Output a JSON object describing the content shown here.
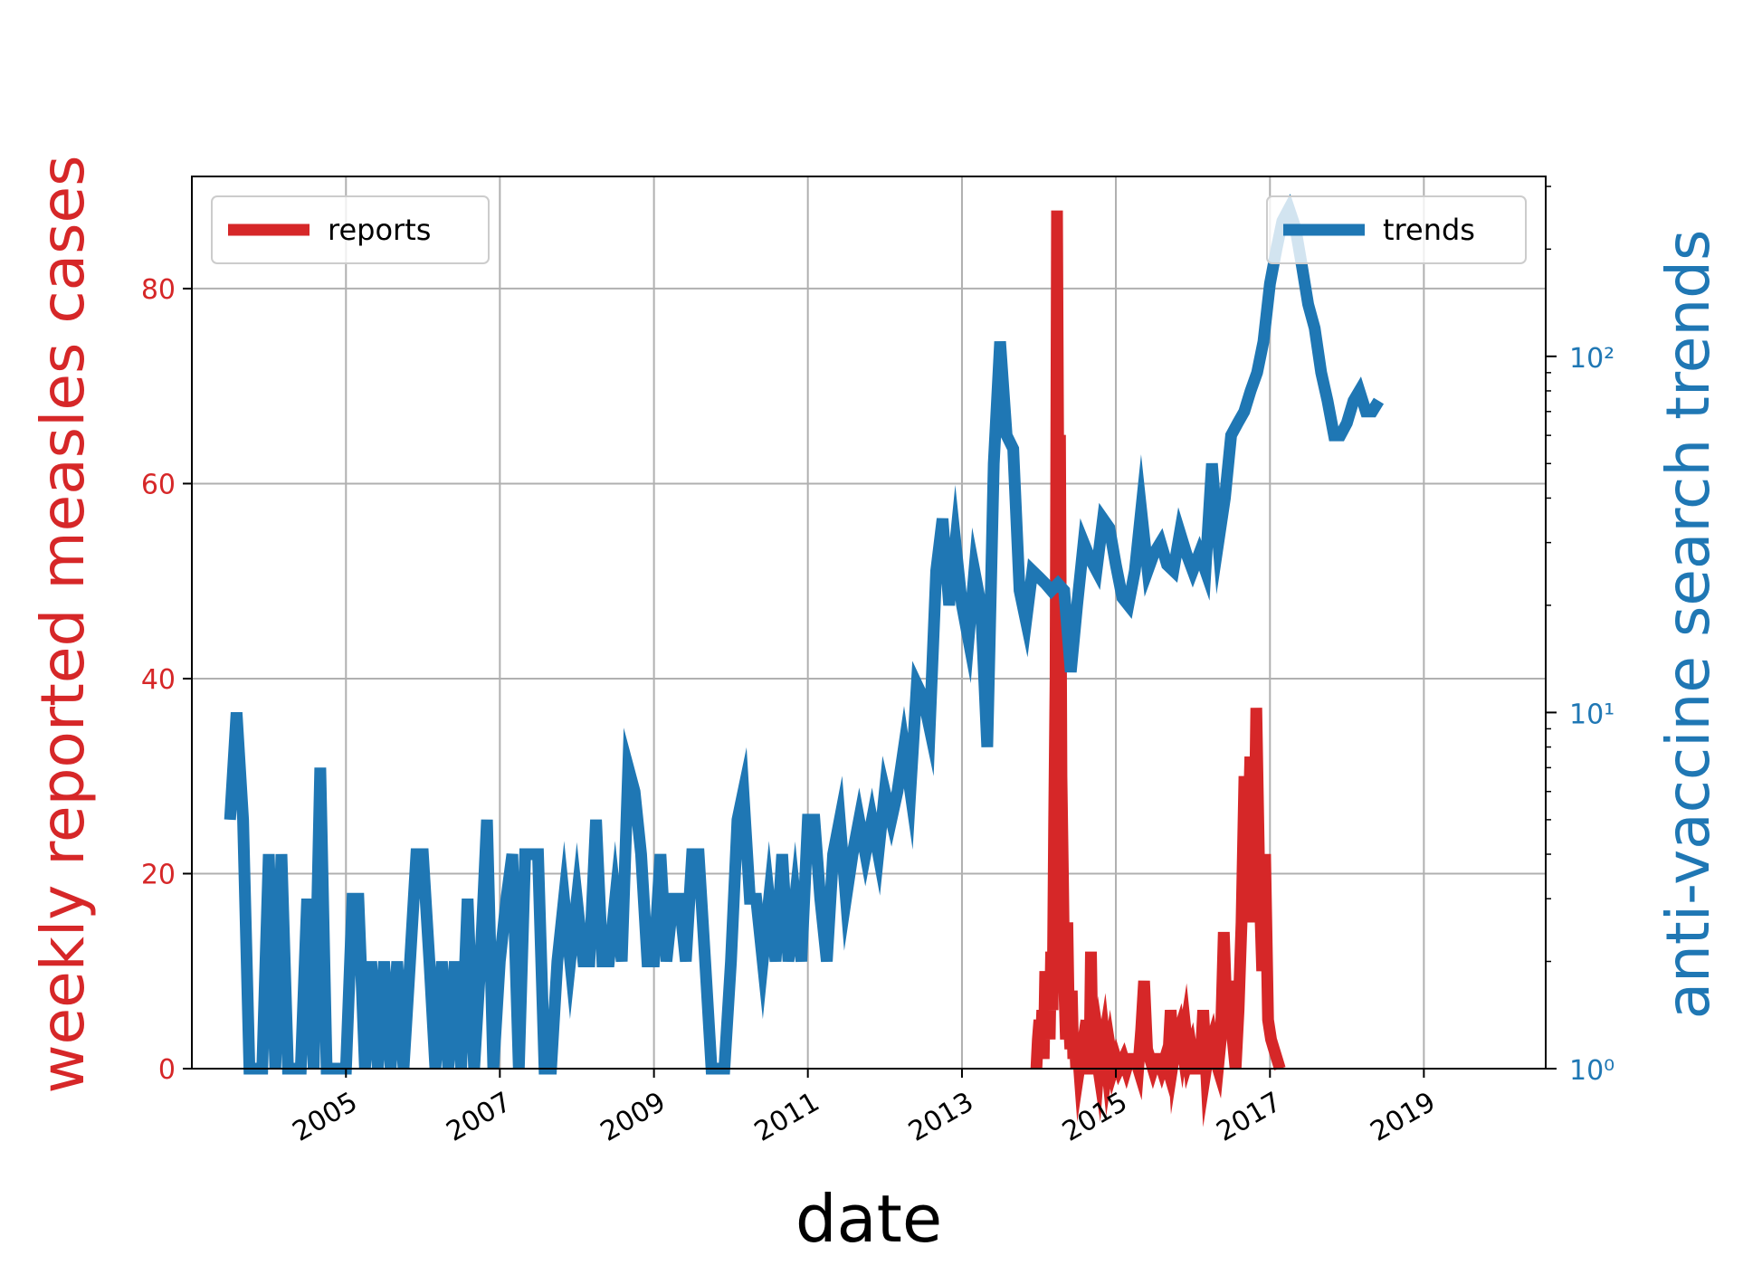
{
  "chart_data": {
    "type": "line",
    "xlabel": "date",
    "ylabel_left": "weekly reported measles cases",
    "ylabel_right": "anti-vaccine search trends",
    "grid": true,
    "x_tick_labels": [
      "2005",
      "2007",
      "2009",
      "2011",
      "2013",
      "2015",
      "2017",
      "2019"
    ],
    "y_left": {
      "ticks": [
        0,
        20,
        40,
        60,
        80
      ],
      "lim": [
        0,
        91.5
      ],
      "color": "#d62728"
    },
    "y_right": {
      "scale": "log",
      "ticks": [
        1,
        10,
        100
      ],
      "tick_labels": [
        "10⁰",
        "10¹",
        "10²"
      ],
      "lim": [
        1,
        320
      ],
      "color": "#1f77b4"
    },
    "xlim": [
      "2003-01-01",
      "2020-08-01"
    ],
    "legends": [
      {
        "label": "reports",
        "color": "#d62728",
        "position": "upper-left"
      },
      {
        "label": "trends",
        "color": "#1f77b4",
        "position": "upper-right"
      }
    ],
    "series": [
      {
        "name": "reports",
        "axis": "left",
        "color": "#d62728",
        "points": [
          [
            "2013-12-20",
            0
          ],
          [
            "2013-12-27",
            3
          ],
          [
            "2014-01-03",
            5
          ],
          [
            "2014-01-10",
            2
          ],
          [
            "2014-01-17",
            6
          ],
          [
            "2014-01-24",
            1
          ],
          [
            "2014-01-31",
            10
          ],
          [
            "2014-02-07",
            4
          ],
          [
            "2014-02-14",
            8
          ],
          [
            "2014-02-21",
            3
          ],
          [
            "2014-02-28",
            12
          ],
          [
            "2014-03-07",
            6
          ],
          [
            "2014-03-14",
            25
          ],
          [
            "2014-03-21",
            40
          ],
          [
            "2014-03-28",
            88
          ],
          [
            "2014-04-04",
            55
          ],
          [
            "2014-04-11",
            65
          ],
          [
            "2014-04-18",
            30
          ],
          [
            "2014-04-25",
            20
          ],
          [
            "2014-05-02",
            8
          ],
          [
            "2014-05-09",
            3
          ],
          [
            "2014-05-16",
            15
          ],
          [
            "2014-05-23",
            5
          ],
          [
            "2014-05-30",
            2
          ],
          [
            "2014-06-06",
            8
          ],
          [
            "2014-06-13",
            1
          ],
          [
            "2014-06-20",
            3
          ],
          [
            "2014-06-27",
            0
          ],
          [
            "2014-07-04",
            2
          ],
          [
            "2014-07-11",
            0
          ],
          [
            "2014-07-18",
            1
          ],
          [
            "2014-07-25",
            0
          ],
          [
            "2014-08-01",
            0
          ],
          [
            "2014-08-15",
            5
          ],
          [
            "2014-08-22",
            0
          ],
          [
            "2014-08-29",
            0
          ],
          [
            "2014-09-05",
            12
          ],
          [
            "2014-09-12",
            2
          ],
          [
            "2014-09-19",
            0
          ],
          [
            "2014-09-26",
            3
          ],
          [
            "2014-10-03",
            1
          ],
          [
            "2014-10-10",
            0
          ],
          [
            "2014-10-17",
            2
          ],
          [
            "2014-10-24",
            1
          ],
          [
            "2014-11-07",
            3
          ],
          [
            "2014-11-21",
            0
          ],
          [
            "2014-12-05",
            2
          ],
          [
            "2014-12-19",
            0
          ],
          [
            "2015-01-02",
            1
          ],
          [
            "2015-01-16",
            0
          ],
          [
            "2015-02-06",
            1
          ],
          [
            "2015-02-20",
            0
          ],
          [
            "2015-03-06",
            1
          ],
          [
            "2015-03-20",
            1
          ],
          [
            "2015-04-03",
            1
          ],
          [
            "2015-04-17",
            0
          ],
          [
            "2015-05-01",
            4
          ],
          [
            "2015-05-15",
            9
          ],
          [
            "2015-05-29",
            2
          ],
          [
            "2015-06-12",
            1
          ],
          [
            "2015-06-26",
            0
          ],
          [
            "2015-07-10",
            1
          ],
          [
            "2015-07-24",
            1
          ],
          [
            "2015-08-07",
            0
          ],
          [
            "2015-08-21",
            1
          ],
          [
            "2015-09-04",
            0
          ],
          [
            "2015-09-18",
            6
          ],
          [
            "2015-10-02",
            1
          ],
          [
            "2015-10-16",
            3
          ],
          [
            "2015-10-30",
            4
          ],
          [
            "2015-11-13",
            2
          ],
          [
            "2015-11-27",
            4
          ],
          [
            "2015-12-11",
            1
          ],
          [
            "2015-12-25",
            2
          ],
          [
            "2016-01-08",
            0
          ],
          [
            "2016-01-22",
            0
          ],
          [
            "2016-02-05",
            0
          ],
          [
            "2016-02-19",
            6
          ],
          [
            "2016-03-04",
            0
          ],
          [
            "2016-03-18",
            2
          ],
          [
            "2016-04-01",
            3
          ],
          [
            "2016-04-15",
            1
          ],
          [
            "2016-04-29",
            0
          ],
          [
            "2016-05-13",
            3
          ],
          [
            "2016-05-27",
            14
          ],
          [
            "2016-06-10",
            5
          ],
          [
            "2016-06-24",
            9
          ],
          [
            "2016-07-08",
            3
          ],
          [
            "2016-07-22",
            0
          ],
          [
            "2016-08-05",
            6
          ],
          [
            "2016-08-19",
            15
          ],
          [
            "2016-09-02",
            30
          ],
          [
            "2016-09-16",
            20
          ],
          [
            "2016-09-30",
            32
          ],
          [
            "2016-10-14",
            15
          ],
          [
            "2016-10-28",
            37
          ],
          [
            "2016-11-11",
            20
          ],
          [
            "2016-11-25",
            10
          ],
          [
            "2016-12-09",
            22
          ],
          [
            "2016-12-23",
            5
          ],
          [
            "2017-01-06",
            3
          ],
          [
            "2017-01-20",
            2
          ],
          [
            "2017-02-03",
            1
          ],
          [
            "2017-02-17",
            0
          ]
        ]
      },
      {
        "name": "trends",
        "axis": "right",
        "color": "#1f77b4",
        "points": [
          [
            "2003-07-01",
            5
          ],
          [
            "2003-08-01",
            10
          ],
          [
            "2003-09-01",
            5
          ],
          [
            "2003-10-01",
            1
          ],
          [
            "2003-11-01",
            1
          ],
          [
            "2003-12-01",
            1
          ],
          [
            "2004-01-01",
            4
          ],
          [
            "2004-02-01",
            1
          ],
          [
            "2004-03-01",
            4
          ],
          [
            "2004-04-01",
            1
          ],
          [
            "2004-05-01",
            1
          ],
          [
            "2004-06-01",
            1
          ],
          [
            "2004-07-01",
            3
          ],
          [
            "2004-08-01",
            1
          ],
          [
            "2004-09-01",
            7
          ],
          [
            "2004-10-01",
            1
          ],
          [
            "2004-11-01",
            1
          ],
          [
            "2004-12-01",
            1
          ],
          [
            "2005-01-01",
            1
          ],
          [
            "2005-02-01",
            3
          ],
          [
            "2005-03-01",
            3
          ],
          [
            "2005-04-01",
            1
          ],
          [
            "2005-05-01",
            2
          ],
          [
            "2005-06-01",
            1
          ],
          [
            "2005-07-01",
            2
          ],
          [
            "2005-08-01",
            1
          ],
          [
            "2005-09-01",
            2
          ],
          [
            "2005-10-01",
            1
          ],
          [
            "2005-11-01",
            2
          ],
          [
            "2005-12-01",
            4
          ],
          [
            "2006-01-01",
            4
          ],
          [
            "2006-02-01",
            2
          ],
          [
            "2006-03-01",
            1
          ],
          [
            "2006-04-01",
            2
          ],
          [
            "2006-05-01",
            1
          ],
          [
            "2006-06-01",
            2
          ],
          [
            "2006-07-01",
            1
          ],
          [
            "2006-08-01",
            3
          ],
          [
            "2006-09-01",
            1
          ],
          [
            "2006-10-01",
            2
          ],
          [
            "2006-11-01",
            5
          ],
          [
            "2006-12-01",
            1
          ],
          [
            "2007-01-01",
            2
          ],
          [
            "2007-02-01",
            3
          ],
          [
            "2007-03-01",
            4
          ],
          [
            "2007-04-01",
            1
          ],
          [
            "2007-05-01",
            4
          ],
          [
            "2007-06-01",
            4
          ],
          [
            "2007-07-01",
            4
          ],
          [
            "2007-08-01",
            1
          ],
          [
            "2007-09-01",
            1
          ],
          [
            "2007-10-01",
            2
          ],
          [
            "2007-11-01",
            3
          ],
          [
            "2007-12-01",
            2
          ],
          [
            "2008-01-01",
            3
          ],
          [
            "2008-02-01",
            2
          ],
          [
            "2008-03-01",
            2
          ],
          [
            "2008-04-01",
            5
          ],
          [
            "2008-05-01",
            2
          ],
          [
            "2008-06-01",
            2
          ],
          [
            "2008-07-01",
            3
          ],
          [
            "2008-08-01",
            2
          ],
          [
            "2008-09-01",
            7
          ],
          [
            "2008-10-01",
            6
          ],
          [
            "2008-11-01",
            4
          ],
          [
            "2008-12-01",
            2
          ],
          [
            "2009-01-01",
            2
          ],
          [
            "2009-02-01",
            4
          ],
          [
            "2009-03-01",
            2
          ],
          [
            "2009-04-01",
            3
          ],
          [
            "2009-05-01",
            3
          ],
          [
            "2009-06-01",
            2
          ],
          [
            "2009-07-01",
            4
          ],
          [
            "2009-08-01",
            4
          ],
          [
            "2009-09-01",
            2
          ],
          [
            "2009-10-01",
            1
          ],
          [
            "2009-11-01",
            1
          ],
          [
            "2009-12-01",
            1
          ],
          [
            "2010-01-01",
            2
          ],
          [
            "2010-02-01",
            5
          ],
          [
            "2010-03-01",
            6
          ],
          [
            "2010-04-01",
            3
          ],
          [
            "2010-05-01",
            3
          ],
          [
            "2010-06-01",
            2
          ],
          [
            "2010-07-01",
            3
          ],
          [
            "2010-08-01",
            2
          ],
          [
            "2010-09-01",
            4
          ],
          [
            "2010-10-01",
            2
          ],
          [
            "2010-11-01",
            3
          ],
          [
            "2010-12-01",
            2
          ],
          [
            "2011-01-01",
            5
          ],
          [
            "2011-02-01",
            5
          ],
          [
            "2011-03-01",
            3
          ],
          [
            "2011-04-01",
            2
          ],
          [
            "2011-05-01",
            4
          ],
          [
            "2011-06-01",
            5
          ],
          [
            "2011-07-01",
            3
          ],
          [
            "2011-08-01",
            4
          ],
          [
            "2011-09-01",
            5
          ],
          [
            "2011-10-01",
            4
          ],
          [
            "2011-11-01",
            5
          ],
          [
            "2011-12-01",
            4
          ],
          [
            "2012-01-01",
            6
          ],
          [
            "2012-02-01",
            5
          ],
          [
            "2012-03-01",
            6
          ],
          [
            "2012-04-01",
            8
          ],
          [
            "2012-05-01",
            6
          ],
          [
            "2012-06-01",
            12
          ],
          [
            "2012-07-01",
            11
          ],
          [
            "2012-08-01",
            9
          ],
          [
            "2012-09-01",
            25
          ],
          [
            "2012-10-01",
            35
          ],
          [
            "2012-11-01",
            20
          ],
          [
            "2012-12-01",
            30
          ],
          [
            "2013-01-01",
            20
          ],
          [
            "2013-02-01",
            16
          ],
          [
            "2013-03-01",
            25
          ],
          [
            "2013-04-01",
            20
          ],
          [
            "2013-05-01",
            8
          ],
          [
            "2013-06-01",
            50
          ],
          [
            "2013-07-01",
            110
          ],
          [
            "2013-08-01",
            60
          ],
          [
            "2013-09-01",
            55
          ],
          [
            "2013-10-01",
            22
          ],
          [
            "2013-11-01",
            18
          ],
          [
            "2013-12-01",
            25
          ],
          [
            "2014-01-01",
            24
          ],
          [
            "2014-02-01",
            23
          ],
          [
            "2014-03-01",
            22
          ],
          [
            "2014-04-01",
            23
          ],
          [
            "2014-05-01",
            22
          ],
          [
            "2014-06-01",
            13
          ],
          [
            "2014-07-01",
            20
          ],
          [
            "2014-08-01",
            30
          ],
          [
            "2014-09-01",
            27
          ],
          [
            "2014-10-01",
            25
          ],
          [
            "2014-11-01",
            35
          ],
          [
            "2014-12-01",
            33
          ],
          [
            "2015-01-01",
            26
          ],
          [
            "2015-02-01",
            21
          ],
          [
            "2015-03-01",
            20
          ],
          [
            "2015-04-01",
            25
          ],
          [
            "2015-05-01",
            37
          ],
          [
            "2015-06-01",
            25
          ],
          [
            "2015-07-01",
            28
          ],
          [
            "2015-08-01",
            30
          ],
          [
            "2015-09-01",
            26
          ],
          [
            "2015-10-01",
            25
          ],
          [
            "2015-11-01",
            32
          ],
          [
            "2015-12-01",
            28
          ],
          [
            "2016-01-01",
            25
          ],
          [
            "2016-02-01",
            28
          ],
          [
            "2016-03-01",
            25
          ],
          [
            "2016-04-01",
            50
          ],
          [
            "2016-05-01",
            30
          ],
          [
            "2016-06-01",
            40
          ],
          [
            "2016-07-01",
            60
          ],
          [
            "2016-08-01",
            65
          ],
          [
            "2016-09-01",
            70
          ],
          [
            "2016-10-01",
            80
          ],
          [
            "2016-11-01",
            90
          ],
          [
            "2016-12-01",
            110
          ],
          [
            "2017-01-01",
            160
          ],
          [
            "2017-02-01",
            200
          ],
          [
            "2017-03-01",
            240
          ],
          [
            "2017-04-01",
            260
          ],
          [
            "2017-05-01",
            230
          ],
          [
            "2017-06-01",
            180
          ],
          [
            "2017-07-01",
            140
          ],
          [
            "2017-08-01",
            120
          ],
          [
            "2017-09-01",
            90
          ],
          [
            "2017-10-01",
            75
          ],
          [
            "2017-11-01",
            60
          ],
          [
            "2017-12-01",
            60
          ],
          [
            "2018-01-01",
            65
          ],
          [
            "2018-02-01",
            75
          ],
          [
            "2018-03-01",
            80
          ],
          [
            "2018-04-01",
            70
          ],
          [
            "2018-05-01",
            70
          ],
          [
            "2018-06-01",
            75
          ]
        ]
      }
    ]
  }
}
